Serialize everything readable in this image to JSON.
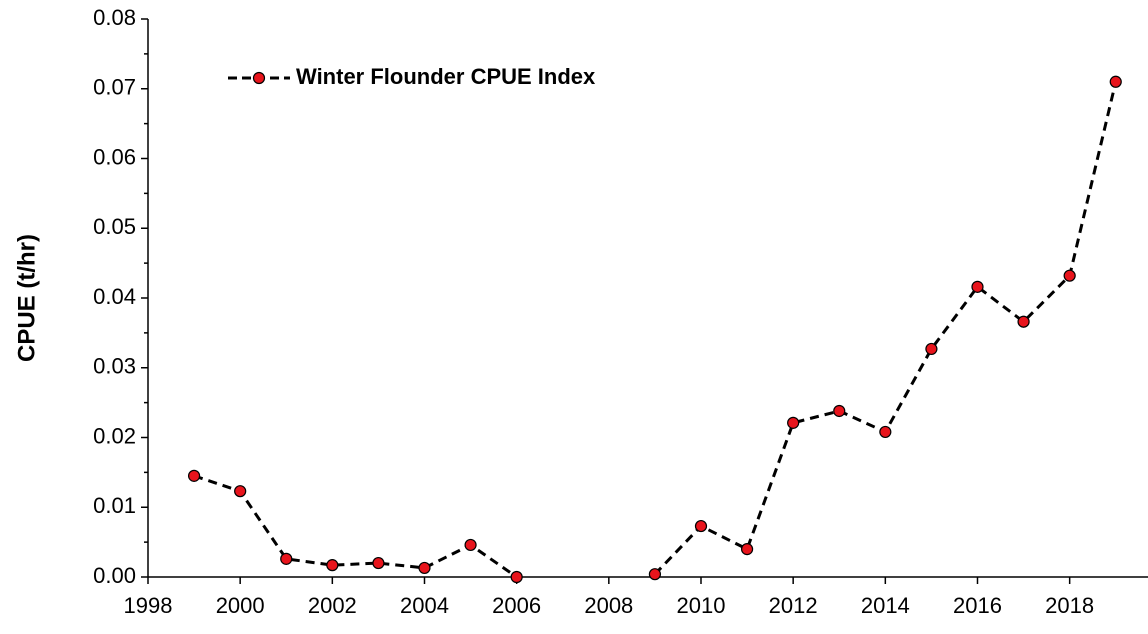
{
  "chart_data": {
    "type": "line",
    "y_label": "CPUE  (t/hr)",
    "x": [
      1999,
      2000,
      2001,
      2002,
      2003,
      2004,
      2005,
      2006,
      2007,
      2008,
      2009,
      2010,
      2011,
      2012,
      2013,
      2014,
      2015,
      2016,
      2017,
      2018,
      2019
    ],
    "series": [
      {
        "name": "Winter Flounder CPUE Index",
        "color": "#e8141c",
        "values": [
          0.0145,
          0.0123,
          0.0026,
          0.0017,
          0.002,
          0.0013,
          0.0046,
          0.0,
          null,
          null,
          0.0004,
          0.0073,
          0.004,
          0.0221,
          0.0238,
          0.0208,
          0.0327,
          0.0416,
          0.0366,
          0.0432,
          0.071
        ]
      }
    ],
    "xlim": [
      1998,
      2019.7
    ],
    "ylim": [
      0,
      0.08
    ],
    "xticks": [
      1998,
      2000,
      2002,
      2004,
      2006,
      2008,
      2010,
      2012,
      2014,
      2016,
      2018
    ],
    "yticks": [
      {
        "value": 0,
        "label": "0.00"
      },
      0.01,
      0.02,
      0.03,
      0.04,
      0.05,
      0.06,
      0.07,
      0.08
    ],
    "legend": "top-left"
  }
}
